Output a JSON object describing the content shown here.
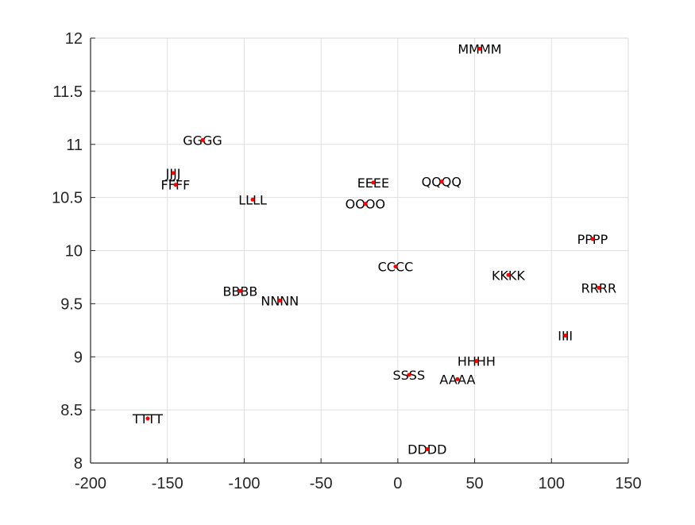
{
  "chart_data": {
    "type": "scatter",
    "title": "",
    "xlabel": "",
    "ylabel": "",
    "xlim": [
      -200,
      150
    ],
    "ylim": [
      8,
      12
    ],
    "grid": true,
    "legend": null,
    "x_ticks": [
      -200,
      -150,
      -100,
      -50,
      0,
      50,
      100,
      150
    ],
    "x_tick_labels": [
      "-200",
      "-150",
      "-100",
      "-50",
      "0",
      "50",
      "100",
      "150"
    ],
    "y_ticks": [
      8,
      8.5,
      9,
      9.5,
      10,
      10.5,
      11,
      11.5,
      12
    ],
    "y_tick_labels": [
      "8",
      "8.5",
      "9",
      "9.5",
      "10",
      "10.5",
      "11",
      "11.5",
      "12"
    ],
    "marker_color": "#ff0000",
    "points": [
      {
        "label": "AAAA",
        "x": 38.8,
        "y": 8.79
      },
      {
        "label": "BBBB",
        "x": -102.6,
        "y": 9.62
      },
      {
        "label": "CCCC",
        "x": -1.5,
        "y": 9.85
      },
      {
        "label": "DDDD",
        "x": 19.1,
        "y": 8.13
      },
      {
        "label": "EEEE",
        "x": -16.0,
        "y": 10.64
      },
      {
        "label": "FFFF",
        "x": -144.7,
        "y": 10.62
      },
      {
        "label": "GGGG",
        "x": -127.1,
        "y": 11.04
      },
      {
        "label": "HHHH",
        "x": 51.2,
        "y": 8.96
      },
      {
        "label": "IIII",
        "x": 109.0,
        "y": 9.2
      },
      {
        "label": "JJJJ",
        "x": -146.2,
        "y": 10.73
      },
      {
        "label": "KKKK",
        "x": 71.9,
        "y": 9.77
      },
      {
        "label": "LLLL",
        "x": -94.5,
        "y": 10.48
      },
      {
        "label": "MMMM",
        "x": 53.3,
        "y": 11.9
      },
      {
        "label": "NNNN",
        "x": -76.8,
        "y": 9.53
      },
      {
        "label": "OOOO",
        "x": -21.2,
        "y": 10.44
      },
      {
        "label": "PPPP",
        "x": 126.7,
        "y": 10.11
      },
      {
        "label": "QQQQ",
        "x": 28.4,
        "y": 10.65
      },
      {
        "label": "RRRR",
        "x": 130.8,
        "y": 9.65
      },
      {
        "label": "SSSS",
        "x": 7.2,
        "y": 8.83
      },
      {
        "label": "TTTT",
        "x": -162.8,
        "y": 8.42
      }
    ]
  }
}
